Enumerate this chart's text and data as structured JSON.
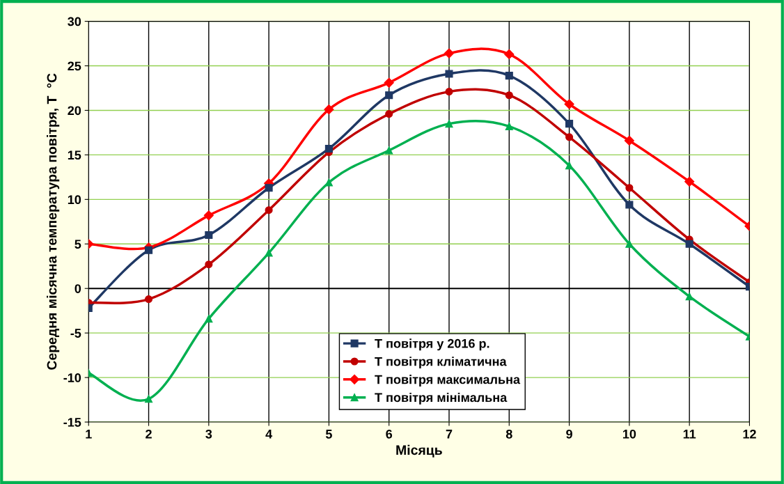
{
  "chart_data": {
    "type": "line",
    "xlabel": "Місяць",
    "ylabel": "Середня місячна температура повітря, Т  °С",
    "x": [
      1,
      2,
      3,
      4,
      5,
      6,
      7,
      8,
      9,
      10,
      11,
      12
    ],
    "xlim": [
      1,
      12
    ],
    "xticks": [
      1,
      2,
      3,
      4,
      5,
      6,
      7,
      8,
      9,
      10,
      11,
      12
    ],
    "ylim": [
      -15,
      30
    ],
    "yticks": [
      -15,
      -10,
      -5,
      0,
      5,
      10,
      15,
      20,
      25,
      30
    ],
    "grid": true,
    "legend": "bottom",
    "ref_lines": [
      {
        "axis": "y",
        "value": 0,
        "color": "#000000"
      }
    ],
    "series": [
      {
        "name": "Т повітря у 2016 р.",
        "color": "#1f3864",
        "marker": "square",
        "values": [
          -2.2,
          4.3,
          6.0,
          11.3,
          15.7,
          21.7,
          24.1,
          23.9,
          18.5,
          9.4,
          5.0,
          0.2
        ]
      },
      {
        "name": "Т повітря кліматична",
        "color": "#c00000",
        "marker": "circle",
        "values": [
          -1.6,
          -1.2,
          2.7,
          8.8,
          15.3,
          19.6,
          22.1,
          21.7,
          17.0,
          11.3,
          5.5,
          0.7
        ]
      },
      {
        "name": "Т повітря максимальна",
        "color": "#ff0000",
        "marker": "diamond",
        "values": [
          5.0,
          4.6,
          8.2,
          11.8,
          20.1,
          23.1,
          26.4,
          26.3,
          20.7,
          16.6,
          12.0,
          7.0
        ]
      },
      {
        "name": "Т повітря мінімальна",
        "color": "#00b050",
        "marker": "triangle",
        "values": [
          -9.5,
          -12.4,
          -3.4,
          4.0,
          11.9,
          15.5,
          18.5,
          18.2,
          13.8,
          5.0,
          -0.9,
          -5.4
        ]
      }
    ]
  }
}
